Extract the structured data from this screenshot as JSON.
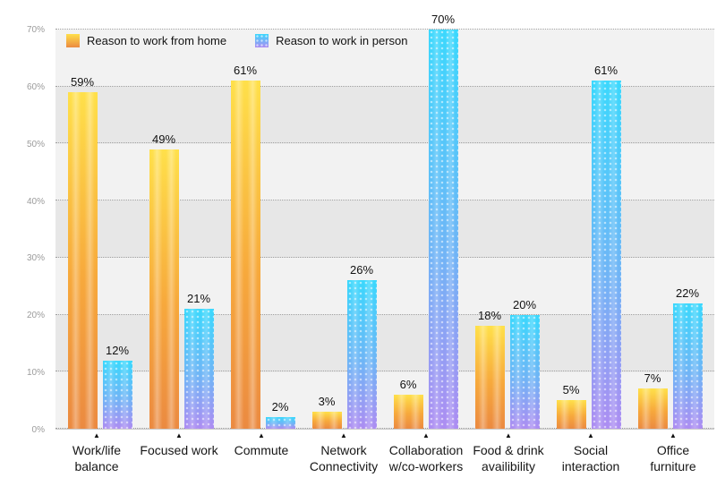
{
  "chart_data": {
    "type": "bar",
    "title": "",
    "categories": [
      "Work/life balance",
      "Focused work",
      "Commute",
      "Network Connectivity",
      "Collaboration w/co-workers",
      "Food & drink availibility",
      "Social interaction",
      "Office furniture"
    ],
    "series": [
      {
        "name": "Reason to work from home",
        "values": [
          59,
          49,
          61,
          3,
          6,
          18,
          5,
          7
        ],
        "colors": {
          "top": "#ffe04a",
          "mid": "#f7a93c",
          "bottom": "#eb8a41"
        },
        "pattern": "solid"
      },
      {
        "name": "Reason to work in person",
        "values": [
          12,
          21,
          2,
          26,
          70,
          20,
          61,
          22
        ],
        "colors": {
          "top": "#3bd8fd",
          "mid": "#6fb5f6",
          "bottom": "#ad8df2"
        },
        "pattern": "dots"
      }
    ],
    "value_label_format": "{v}%",
    "y_ticks": [
      "0%",
      "10%",
      "20%",
      "30%",
      "40%",
      "50%",
      "60%",
      "70%"
    ],
    "ylim": [
      0,
      70
    ],
    "grid": "dotted horizontal lines, striped gray background",
    "legend_position": "top-left",
    "axis_marker": "▲"
  }
}
